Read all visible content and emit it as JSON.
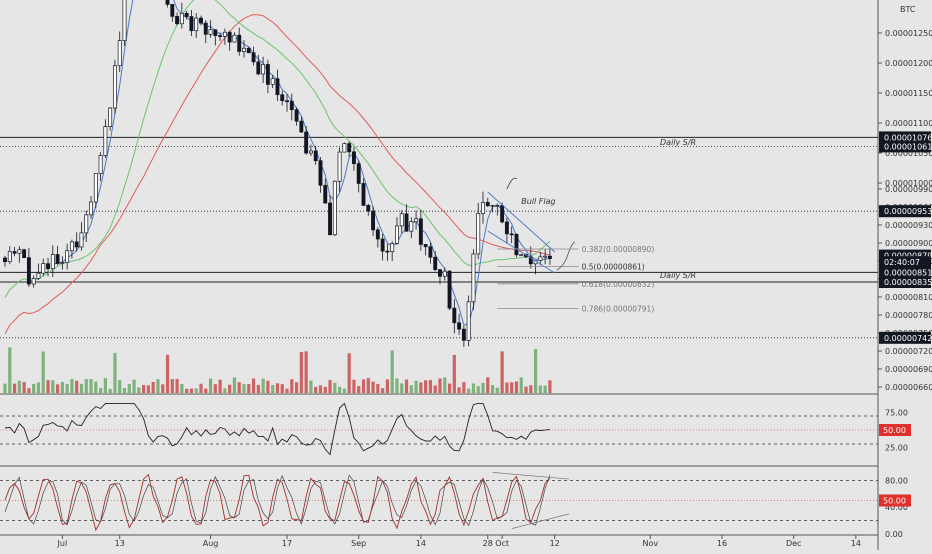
{
  "chart_data": {
    "type": "candlestick",
    "currency_label": "BTC",
    "price_axis": {
      "ylim": [
        6.5e-06,
        1.305e-05
      ],
      "ticks": [
        {
          "value": 6.6e-06,
          "label": "0.00000660"
        },
        {
          "value": 6.9e-06,
          "label": "0.00000690"
        },
        {
          "value": 7.2e-06,
          "label": "0.00000720"
        },
        {
          "value": 7.5e-06,
          "label": "0.00000750"
        },
        {
          "value": 7.8e-06,
          "label": "0.00000780"
        },
        {
          "value": 8.1e-06,
          "label": "0.00000810"
        },
        {
          "value": 8.4e-06,
          "label": "0.00000840"
        },
        {
          "value": 8.7e-06,
          "label": "0.00000870"
        },
        {
          "value": 9e-06,
          "label": "0.00000900"
        },
        {
          "value": 9.3e-06,
          "label": "0.00000930"
        },
        {
          "value": 9.6e-06,
          "label": "0.00000960"
        },
        {
          "value": 9.9e-06,
          "label": "0.00000990"
        },
        {
          "value": 1e-05,
          "label": "0.00001000"
        },
        {
          "value": 1.05e-05,
          "label": "0.00001050"
        },
        {
          "value": 1.1e-05,
          "label": "0.00001100"
        },
        {
          "value": 1.15e-05,
          "label": "0.00001150"
        },
        {
          "value": 1.2e-05,
          "label": "0.00001200"
        },
        {
          "value": 1.25e-05,
          "label": "0.00001250"
        }
      ]
    },
    "price_badges": [
      {
        "value": 1.076e-05,
        "label": "0.00001076",
        "style": "dark"
      },
      {
        "value": 1.061e-05,
        "label": "0.00001061",
        "style": "dark"
      },
      {
        "value": 9.53e-06,
        "label": "0.00000953",
        "style": "dark"
      },
      {
        "value": 8.79e-06,
        "label": "0.00000879",
        "style": "dark"
      },
      {
        "value": 8.68e-06,
        "label": "02:40:07",
        "style": "dark"
      },
      {
        "value": 8.51e-06,
        "label": "0.00000851",
        "style": "dark"
      },
      {
        "value": 8.35e-06,
        "label": "0.00000835",
        "style": "dark"
      },
      {
        "value": 7.42e-06,
        "label": "0.00000742",
        "style": "dark"
      }
    ],
    "horizontal_levels": [
      {
        "value": 1.076e-05,
        "style": "solid"
      },
      {
        "value": 1.061e-05,
        "style": "dotted"
      },
      {
        "value": 9.53e-06,
        "style": "dotted"
      },
      {
        "value": 8.51e-06,
        "style": "solid"
      },
      {
        "value": 8.35e-06,
        "style": "solid"
      },
      {
        "value": 7.42e-06,
        "style": "dotted"
      }
    ],
    "annotations": [
      {
        "text": "Daily S/R",
        "value": 1.06856e-05
      },
      {
        "text": "Daily S/R",
        "value": 8.47e-06
      },
      {
        "text": "Bull Flag",
        "value": 9.7e-06
      }
    ],
    "fib_levels": [
      {
        "ratio": "0.382",
        "label": "0.382(0.00000890)",
        "value": 8.9e-06
      },
      {
        "ratio": "0.5",
        "label": "0.5(0.00000861)",
        "value": 8.61e-06
      },
      {
        "ratio": "0.618",
        "label": "0.618(0.00000832)",
        "value": 8.32e-06
      },
      {
        "ratio": "0.786",
        "label": "0.786(0.00000791)",
        "value": 7.91e-06
      }
    ],
    "x_axis": {
      "ticks": [
        {
          "label": "Jul",
          "day": 0
        },
        {
          "label": "13",
          "day": 12
        },
        {
          "label": "Aug",
          "day": 31
        },
        {
          "label": "17",
          "day": 47
        },
        {
          "label": "Sep",
          "day": 62
        },
        {
          "label": "14",
          "day": 75
        },
        {
          "label": "28",
          "day": 89
        },
        {
          "label": "Oct",
          "day": 92
        },
        {
          "label": "12",
          "day": 103
        },
        {
          "label": "Nov",
          "day": 123
        },
        {
          "label": "16",
          "day": 138
        },
        {
          "label": "Dec",
          "day": 153
        },
        {
          "label": "14",
          "day": 166
        }
      ]
    },
    "rsi": {
      "ticks": [
        {
          "value": 75,
          "label": "75.00"
        },
        {
          "value": 25,
          "label": "25.00"
        }
      ],
      "badge": {
        "value": 50,
        "label": "50.00"
      },
      "upper": 70,
      "lower": 30,
      "middle": 50
    },
    "stoch": {
      "ticks": [
        {
          "value": 80,
          "label": "80.00"
        },
        {
          "value": 40,
          "label": "40.00"
        },
        {
          "value": 0,
          "label": "0.00"
        }
      ],
      "badge": {
        "value": 50,
        "label": "50.00"
      },
      "upper": 80,
      "lower": 20,
      "middle": 50
    },
    "colors": {
      "background": "#e6e6e6",
      "candle": "#131722",
      "ma_green": "#6cc56c",
      "ma_red": "#e35b5b",
      "ma_blue": "#4a79c9",
      "badge_dark": "#131722",
      "badge_red": "#e0302c",
      "vol_red": "#c94b4b",
      "vol_green": "#6aa86a",
      "stoch_line": "#a0302c"
    }
  }
}
